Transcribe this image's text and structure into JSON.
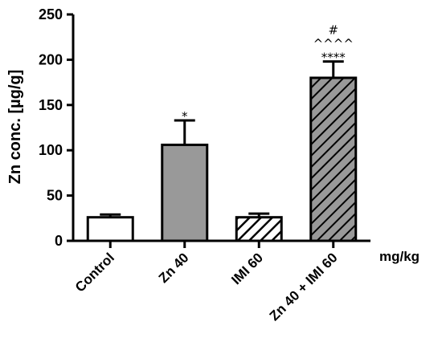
{
  "chart_data": {
    "type": "bar",
    "ylabel": "Zn conc. [µg/g]",
    "xlabel": "mg/kg",
    "ylim": [
      0,
      250
    ],
    "yticks": [
      0,
      50,
      100,
      150,
      200,
      250
    ],
    "categories": [
      "Control",
      "Zn 40",
      "IMI 60",
      "Zn 40 + IMI 60"
    ],
    "values": [
      26,
      106,
      26,
      180
    ],
    "errors": [
      3,
      27,
      4,
      18
    ],
    "annotations": [
      [],
      [
        "*"
      ],
      [],
      [
        "****",
        "^^^^",
        "#"
      ]
    ],
    "fills": [
      "white",
      "gray",
      "hatch-light",
      "hatch-dark"
    ],
    "colors": {
      "gray": "#999999",
      "hatch_light_bg": "#ffffff",
      "hatch_dark_bg": "#999999",
      "hatch_stroke": "#000000"
    },
    "grid": false,
    "legend": "none"
  }
}
